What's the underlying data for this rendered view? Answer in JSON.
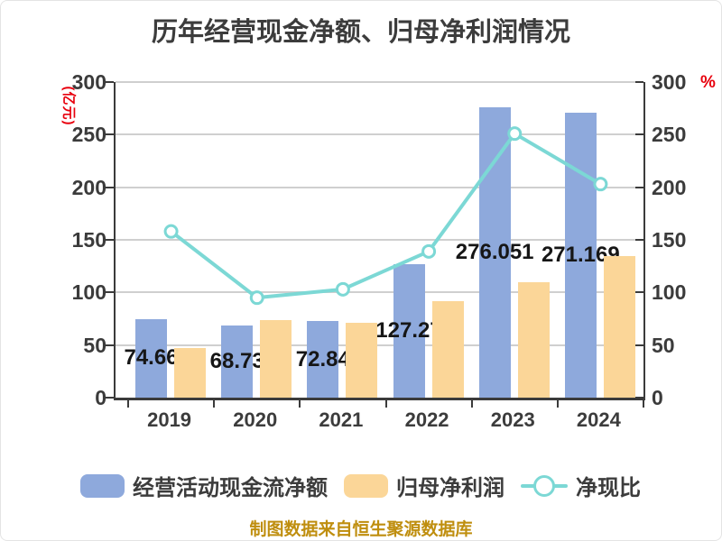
{
  "title": "历年经营现金净额、归母净利润情况",
  "footer_note": "制图数据来自恒生聚源数据库",
  "axis": {
    "left_unit": "(亿元)",
    "right_unit": "%"
  },
  "colors": {
    "bar_cashflow_blue": "#8EA9DC",
    "bar_profit_tan": "#FBD698",
    "line_teal": "#7CD8D5",
    "axis_text": "#3C3C3C",
    "grid_line": "#CFCFCF",
    "unit_label_red": "#E8000D",
    "footer_gold": "#BF8E0E",
    "background": "#FFFFFF"
  },
  "chart_data": {
    "type": "bar",
    "title": "历年经营现金净额、归母净利润情况",
    "categories": [
      "2019",
      "2020",
      "2021",
      "2022",
      "2023",
      "2024"
    ],
    "series": [
      {
        "name": "经营活动现金流净额",
        "type": "bar",
        "axis": "left",
        "color": "#8EA9DC",
        "values": [
          74.66,
          68.73,
          72.84,
          127.27,
          276.051,
          271.169
        ],
        "data_labels": [
          "74.66",
          "68.73",
          "72.84",
          "127.27",
          "276.051",
          "271.169"
        ]
      },
      {
        "name": "归母净利润",
        "type": "bar",
        "axis": "left",
        "color": "#FBD698",
        "values": [
          47.3,
          73.4,
          71.4,
          92,
          110,
          134.5
        ]
      },
      {
        "name": "净现比",
        "type": "line",
        "axis": "right",
        "color": "#7CD8D5",
        "marker": "circle-white-fill",
        "values": [
          158,
          95,
          103,
          139,
          251,
          203
        ]
      }
    ],
    "ylabel_left": "(亿元)",
    "ylabel_right": "%",
    "ylim_left": [
      0,
      300
    ],
    "ylim_right": [
      0,
      300
    ],
    "yticks": [
      0,
      50,
      100,
      150,
      200,
      250,
      300
    ],
    "grid": true,
    "legend_position": "bottom"
  }
}
